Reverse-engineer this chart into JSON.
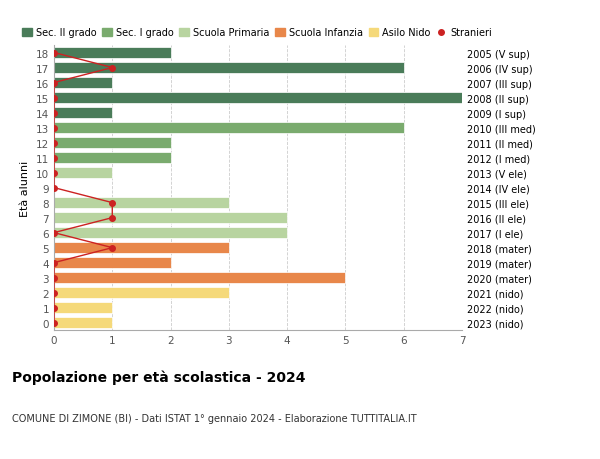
{
  "ages": [
    18,
    17,
    16,
    15,
    14,
    13,
    12,
    11,
    10,
    9,
    8,
    7,
    6,
    5,
    4,
    3,
    2,
    1,
    0
  ],
  "right_labels": [
    "2005 (V sup)",
    "2006 (IV sup)",
    "2007 (III sup)",
    "2008 (II sup)",
    "2009 (I sup)",
    "2010 (III med)",
    "2011 (II med)",
    "2012 (I med)",
    "2013 (V ele)",
    "2014 (IV ele)",
    "2015 (III ele)",
    "2016 (II ele)",
    "2017 (I ele)",
    "2018 (mater)",
    "2019 (mater)",
    "2020 (mater)",
    "2021 (nido)",
    "2022 (nido)",
    "2023 (nido)"
  ],
  "bar_values": [
    2,
    6,
    1,
    7,
    1,
    6,
    2,
    2,
    1,
    0,
    3,
    4,
    4,
    3,
    2,
    5,
    3,
    1,
    1
  ],
  "bar_colors": [
    "#4a7c59",
    "#4a7c59",
    "#4a7c59",
    "#4a7c59",
    "#4a7c59",
    "#7aab6e",
    "#7aab6e",
    "#7aab6e",
    "#b8d4a0",
    "#b8d4a0",
    "#b8d4a0",
    "#b8d4a0",
    "#b8d4a0",
    "#e8874a",
    "#e8874a",
    "#e8874a",
    "#f5d97a",
    "#f5d97a",
    "#f5d97a"
  ],
  "stranieri_x": [
    0,
    1,
    0,
    0,
    0,
    0,
    0,
    0,
    0,
    0,
    1,
    1,
    0,
    1,
    0,
    0,
    0,
    0,
    0
  ],
  "color_sec2": "#4a7c59",
  "color_sec1": "#7aab6e",
  "color_primaria": "#b8d4a0",
  "color_infanzia": "#e8874a",
  "color_nido": "#f5d97a",
  "color_stranieri": "#cc2222",
  "title": "Popolazione per età scolastica - 2024",
  "subtitle": "COMUNE DI ZIMONE (BI) - Dati ISTAT 1° gennaio 2024 - Elaborazione TUTTITALIA.IT",
  "ylabel": "Età alunni",
  "xlim": [
    0,
    7
  ],
  "legend_labels": [
    "Sec. II grado",
    "Sec. I grado",
    "Scuola Primaria",
    "Scuola Infanzia",
    "Asilo Nido",
    "Stranieri"
  ],
  "grid_color": "#cccccc",
  "figsize": [
    6.0,
    4.6
  ],
  "dpi": 100
}
